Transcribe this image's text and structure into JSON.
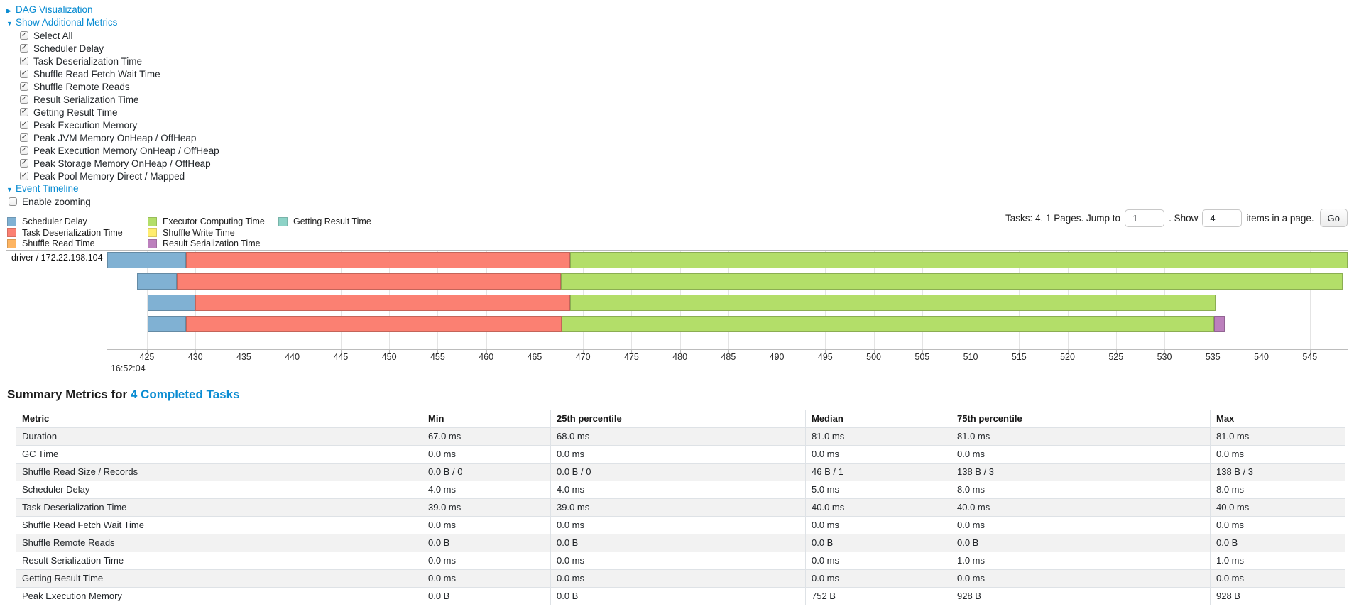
{
  "colors": {
    "link": "#0a8cd2",
    "scheduler_delay": "#80B1D3",
    "task_deserialization_time": "#FB8072",
    "shuffle_read_time": "#FDB462",
    "executor_computing_time": "#B3DE69",
    "shuffle_write_time": "#FFED6F",
    "result_serialization_time": "#BC80BD",
    "getting_result_time": "#8DD3C7"
  },
  "toggles": {
    "dag": {
      "label": "DAG Visualization",
      "state": "collapsed"
    },
    "additional_metrics": {
      "label": "Show Additional Metrics",
      "state": "expanded"
    },
    "event_timeline": {
      "label": "Event Timeline",
      "state": "expanded"
    }
  },
  "metrics_panel": {
    "items": [
      {
        "label": "Select All",
        "checked": true
      },
      {
        "label": "Scheduler Delay",
        "checked": true
      },
      {
        "label": "Task Deserialization Time",
        "checked": true
      },
      {
        "label": "Shuffle Read Fetch Wait Time",
        "checked": true
      },
      {
        "label": "Shuffle Remote Reads",
        "checked": true
      },
      {
        "label": "Result Serialization Time",
        "checked": true
      },
      {
        "label": "Getting Result Time",
        "checked": true
      },
      {
        "label": "Peak Execution Memory",
        "checked": true
      },
      {
        "label": "Peak JVM Memory OnHeap / OffHeap",
        "checked": true
      },
      {
        "label": "Peak Execution Memory OnHeap / OffHeap",
        "checked": true
      },
      {
        "label": "Peak Storage Memory OnHeap / OffHeap",
        "checked": true
      },
      {
        "label": "Peak Pool Memory Direct / Mapped",
        "checked": true
      }
    ]
  },
  "enable_zooming": {
    "label": "Enable zooming",
    "checked": false
  },
  "legend": {
    "items": [
      {
        "label": "Scheduler Delay",
        "color_key": "scheduler_delay",
        "col": 0,
        "row": 0
      },
      {
        "label": "Task Deserialization Time",
        "color_key": "task_deserialization_time",
        "col": 0,
        "row": 1
      },
      {
        "label": "Shuffle Read Time",
        "color_key": "shuffle_read_time",
        "col": 0,
        "row": 2
      },
      {
        "label": "Executor Computing Time",
        "color_key": "executor_computing_time",
        "col": 1,
        "row": 0
      },
      {
        "label": "Shuffle Write Time",
        "color_key": "shuffle_write_time",
        "col": 1,
        "row": 1
      },
      {
        "label": "Result Serialization Time",
        "color_key": "result_serialization_time",
        "col": 1,
        "row": 2
      },
      {
        "label": "Getting Result Time",
        "color_key": "getting_result_time",
        "col": 2,
        "row": 0
      }
    ]
  },
  "pagination": {
    "summary_text": "Tasks: 4. 1 Pages. Jump to",
    "jump_value": "1",
    "show_text": ". Show",
    "show_value": "4",
    "items_text": "items in a page.",
    "go_label": "Go"
  },
  "chart_data": {
    "type": "timeline",
    "title": "Event Timeline",
    "executor_label": "driver / 172.22.198.104",
    "x_axis": {
      "base_time_label": "16:52:04",
      "unit": "milliseconds after 16:52:04",
      "tick_start": 425,
      "tick_end": 550,
      "tick_step": 5,
      "visible_min": 420.9,
      "visible_max": 548.9,
      "grid": true
    },
    "tasks": [
      {
        "segments": [
          {
            "metric": "scheduler_delay",
            "start": 420.9,
            "end": 429.0
          },
          {
            "metric": "task_deserialization_time",
            "start": 429.0,
            "end": 468.7
          },
          {
            "metric": "executor_computing_time",
            "start": 468.7,
            "end": 548.9
          }
        ]
      },
      {
        "segments": [
          {
            "metric": "scheduler_delay",
            "start": 424.0,
            "end": 428.1
          },
          {
            "metric": "task_deserialization_time",
            "start": 428.1,
            "end": 467.7
          },
          {
            "metric": "executor_computing_time",
            "start": 467.7,
            "end": 548.4
          }
        ]
      },
      {
        "segments": [
          {
            "metric": "scheduler_delay",
            "start": 425.1,
            "end": 430.0
          },
          {
            "metric": "task_deserialization_time",
            "start": 430.0,
            "end": 468.7
          },
          {
            "metric": "executor_computing_time",
            "start": 468.7,
            "end": 535.3
          }
        ]
      },
      {
        "segments": [
          {
            "metric": "scheduler_delay",
            "start": 425.1,
            "end": 429.0
          },
          {
            "metric": "task_deserialization_time",
            "start": 429.0,
            "end": 467.8
          },
          {
            "metric": "executor_computing_time",
            "start": 467.8,
            "end": 535.1
          },
          {
            "metric": "result_serialization_time",
            "start": 535.1,
            "end": 536.2
          }
        ]
      }
    ]
  },
  "summary_table": {
    "heading_prefix": "Summary Metrics for",
    "heading_link": "4 Completed Tasks",
    "columns": [
      "Metric",
      "Min",
      "25th percentile",
      "Median",
      "75th percentile",
      "Max"
    ],
    "rows": [
      {
        "metric": "Duration",
        "values": [
          "67.0 ms",
          "68.0 ms",
          "81.0 ms",
          "81.0 ms",
          "81.0 ms"
        ]
      },
      {
        "metric": "GC Time",
        "values": [
          "0.0 ms",
          "0.0 ms",
          "0.0 ms",
          "0.0 ms",
          "0.0 ms"
        ]
      },
      {
        "metric": "Shuffle Read Size / Records",
        "values": [
          "0.0 B / 0",
          "0.0 B / 0",
          "46 B / 1",
          "138 B / 3",
          "138 B / 3"
        ]
      },
      {
        "metric": "Scheduler Delay",
        "values": [
          "4.0 ms",
          "4.0 ms",
          "5.0 ms",
          "8.0 ms",
          "8.0 ms"
        ]
      },
      {
        "metric": "Task Deserialization Time",
        "values": [
          "39.0 ms",
          "39.0 ms",
          "40.0 ms",
          "40.0 ms",
          "40.0 ms"
        ]
      },
      {
        "metric": "Shuffle Read Fetch Wait Time",
        "values": [
          "0.0 ms",
          "0.0 ms",
          "0.0 ms",
          "0.0 ms",
          "0.0 ms"
        ]
      },
      {
        "metric": "Shuffle Remote Reads",
        "values": [
          "0.0 B",
          "0.0 B",
          "0.0 B",
          "0.0 B",
          "0.0 B"
        ]
      },
      {
        "metric": "Result Serialization Time",
        "values": [
          "0.0 ms",
          "0.0 ms",
          "0.0 ms",
          "1.0 ms",
          "1.0 ms"
        ]
      },
      {
        "metric": "Getting Result Time",
        "values": [
          "0.0 ms",
          "0.0 ms",
          "0.0 ms",
          "0.0 ms",
          "0.0 ms"
        ]
      },
      {
        "metric": "Peak Execution Memory",
        "values": [
          "0.0 B",
          "0.0 B",
          "752 B",
          "928 B",
          "928 B"
        ]
      }
    ]
  }
}
